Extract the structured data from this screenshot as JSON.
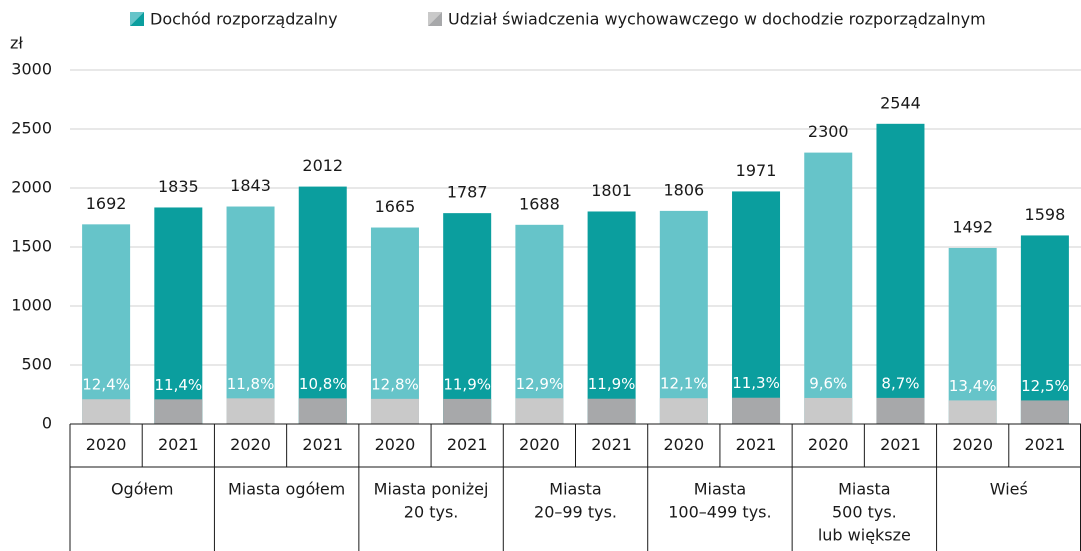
{
  "chart_data": {
    "type": "bar",
    "y_label": "zł",
    "ylim": [
      0,
      3000
    ],
    "yticks": [
      0,
      500,
      1000,
      1500,
      2000,
      2500,
      3000
    ],
    "grid": true,
    "x_labels": [
      "2020",
      "2021",
      "2020",
      "2021",
      "2020",
      "2021",
      "2020",
      "2021",
      "2020",
      "2021",
      "2020",
      "2021",
      "2020",
      "2021"
    ],
    "groups": [
      [
        "Ogółem"
      ],
      [
        "Miasta ogółem"
      ],
      [
        "Miasta poniżej",
        "20 tys."
      ],
      [
        "Miasta",
        "20–99 tys."
      ],
      [
        "Miasta",
        "100–499 tys."
      ],
      [
        "Miasta",
        "500 tys.",
        "lub większe"
      ],
      [
        "Wieś"
      ]
    ],
    "series": [
      {
        "name": "Dochód rozporządzalny",
        "colors": [
          "#66c4c9",
          "#0b9e9e"
        ],
        "values": [
          1692,
          1835,
          1843,
          2012,
          1665,
          1787,
          1688,
          1801,
          1806,
          1971,
          2300,
          2544,
          1492,
          1598
        ]
      },
      {
        "name": "Udział świadczenia wychowawczego w dochodzie rozporządzalnym",
        "colors": [
          "#c9c9c9",
          "#a7a8aa"
        ],
        "values": [
          12.4,
          11.4,
          11.8,
          10.8,
          12.8,
          11.9,
          12.9,
          11.9,
          12.1,
          11.3,
          9.6,
          8.7,
          13.4,
          12.5
        ],
        "value_labels": [
          "12,4%",
          "11,4%",
          "11,8%",
          "10,8%",
          "12,8%",
          "11,9%",
          "12,9%",
          "11,9%",
          "12,1%",
          "11,3%",
          "9,6%",
          "8,7%",
          "13,4%",
          "12,5%"
        ]
      }
    ]
  }
}
